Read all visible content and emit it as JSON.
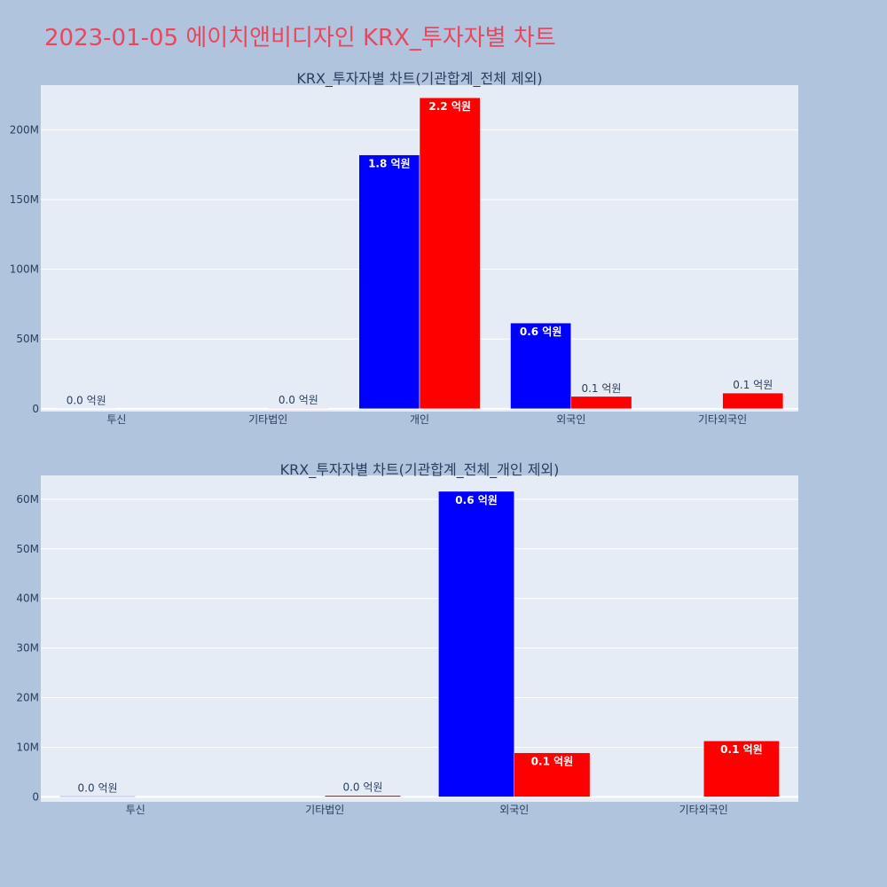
{
  "page_title": "2023-01-05 에이치앤비디자인 KRX_투자자별 차트",
  "colors": {
    "buy": "#0000ff",
    "sell": "#ff0000",
    "plot_bg": "#e5ecf6",
    "page_bg": "#b0c4de",
    "title": "#e8475f"
  },
  "chart_data": [
    {
      "type": "bar",
      "title": "KRX_투자자별 차트(기관합계_전체 제외)",
      "categories": [
        "투신",
        "기타법인",
        "개인",
        "외국인",
        "기타외국인"
      ],
      "series": [
        {
          "color": "#0000ff",
          "values": [
            0.3,
            0,
            182,
            61.5,
            0
          ],
          "labels": [
            "0.0 억원",
            "",
            "1.8 억원",
            "0.6 억원",
            ""
          ]
        },
        {
          "color": "#ff0000",
          "values": [
            0,
            0.4,
            223,
            8.9,
            11.3
          ],
          "labels": [
            "",
            "0.0 억원",
            "2.2 억원",
            "0.1 억원",
            "0.1 억원"
          ]
        }
      ],
      "yticks": [
        0,
        50,
        100,
        150,
        200
      ],
      "ytick_labels": [
        "0",
        "50M",
        "100M",
        "150M",
        "200M"
      ],
      "ylim": [
        -2,
        232
      ]
    },
    {
      "type": "bar",
      "title": "KRX_투자자별 차트(기관합계_전체_개인 제외)",
      "categories": [
        "투신",
        "기타법인",
        "외국인",
        "기타외국인"
      ],
      "series": [
        {
          "color": "#0000ff",
          "values": [
            0.15,
            0,
            61.6,
            0
          ],
          "labels": [
            "0.0 억원",
            "",
            "0.6 억원",
            ""
          ]
        },
        {
          "color": "#ff0000",
          "values": [
            0,
            0.3,
            8.9,
            11.3
          ],
          "labels": [
            "",
            "0.0 억원",
            "0.1 억원",
            "0.1 억원"
          ]
        }
      ],
      "yticks": [
        0,
        10,
        20,
        30,
        40,
        50,
        60
      ],
      "ytick_labels": [
        "0",
        "10M",
        "20M",
        "30M",
        "40M",
        "50M",
        "60M"
      ],
      "ylim": [
        -1,
        64.8
      ]
    }
  ]
}
